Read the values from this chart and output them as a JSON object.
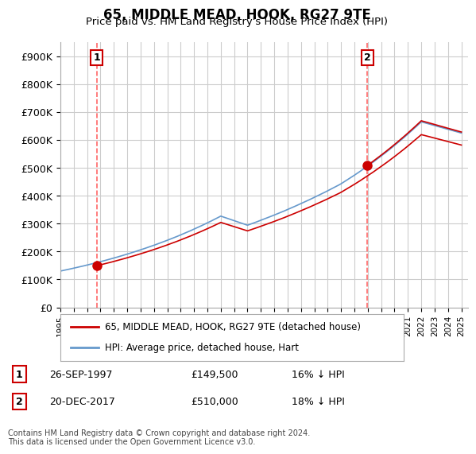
{
  "title": "65, MIDDLE MEAD, HOOK, RG27 9TE",
  "subtitle": "Price paid vs. HM Land Registry's House Price Index (HPI)",
  "ylim": [
    0,
    950000
  ],
  "yticks": [
    0,
    100000,
    200000,
    300000,
    400000,
    500000,
    600000,
    700000,
    800000,
    900000
  ],
  "ytick_labels": [
    "£0",
    "£100K",
    "£200K",
    "£300K",
    "£400K",
    "£500K",
    "£600K",
    "£700K",
    "£800K",
    "£900K"
  ],
  "hpi_color": "#6699cc",
  "price_color": "#cc0000",
  "marker_color": "#cc0000",
  "dashed_line_color": "#ff6666",
  "sale1_year": 1997.73,
  "sale1_price": 149500,
  "sale1_label": "1",
  "sale2_year": 2017.97,
  "sale2_price": 510000,
  "sale2_label": "2",
  "legend_price_label": "65, MIDDLE MEAD, HOOK, RG27 9TE (detached house)",
  "legend_hpi_label": "HPI: Average price, detached house, Hart",
  "note1_label": "1",
  "note1_date": "26-SEP-1997",
  "note1_price": "£149,500",
  "note1_pct": "16% ↓ HPI",
  "note2_label": "2",
  "note2_date": "20-DEC-2017",
  "note2_price": "£510,000",
  "note2_pct": "18% ↓ HPI",
  "copyright": "Contains HM Land Registry data © Crown copyright and database right 2024.\nThis data is licensed under the Open Government Licence v3.0.",
  "background_color": "#ffffff",
  "grid_color": "#cccccc"
}
